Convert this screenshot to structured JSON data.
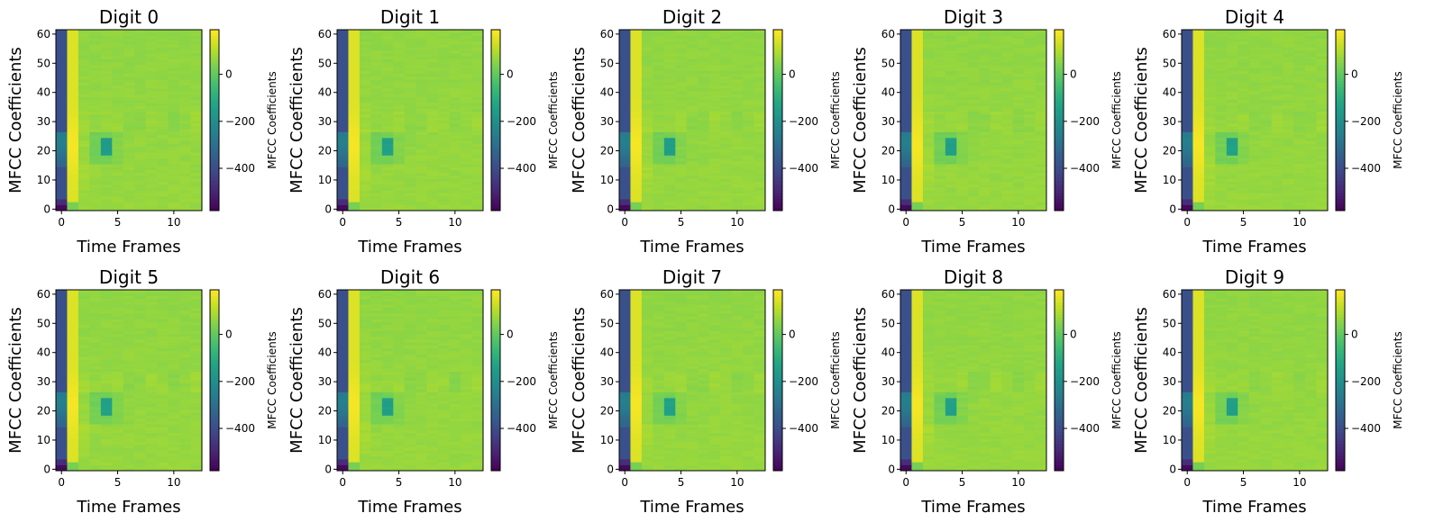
{
  "chart_data": {
    "type": "heatmap",
    "layout": "2x5 grid of MFCC heatmaps",
    "colormap": "viridis",
    "xlabel": "Time Frames",
    "ylabel": "MFCC Coefficients",
    "colorbar_label": "MFCC Coefficients",
    "x_range": [
      -0.5,
      12.5
    ],
    "y_range": [
      -0.5,
      61.5
    ],
    "x_ticks": [
      0,
      5,
      10
    ],
    "y_ticks": [
      0,
      10,
      20,
      30,
      40,
      50,
      60
    ],
    "n_frames": 13,
    "n_coefficients": 62,
    "colorbar_range": [
      -580,
      190
    ],
    "colorbar_ticks": [
      0,
      -200,
      -400
    ],
    "colorbar_tick_labels": [
      "0",
      "−200",
      "−400"
    ],
    "panels": [
      {
        "title": "Digit 0",
        "dip_frame": 4,
        "dip_value": -150
      },
      {
        "title": "Digit 1",
        "dip_frame": 4,
        "dip_value": -140
      },
      {
        "title": "Digit 2",
        "dip_frame": 4,
        "dip_value": -150
      },
      {
        "title": "Digit 3",
        "dip_frame": 4,
        "dip_value": -145
      },
      {
        "title": "Digit 4",
        "dip_frame": 4,
        "dip_value": -140
      },
      {
        "title": "Digit 5",
        "dip_frame": 4,
        "dip_value": -135
      },
      {
        "title": "Digit 6",
        "dip_frame": 4,
        "dip_value": -140
      },
      {
        "title": "Digit 7",
        "dip_frame": 4,
        "dip_value": -135
      },
      {
        "title": "Digit 8",
        "dip_frame": 4,
        "dip_value": -140
      },
      {
        "title": "Digit 9",
        "dip_frame": 4,
        "dip_value": -140
      }
    ]
  }
}
